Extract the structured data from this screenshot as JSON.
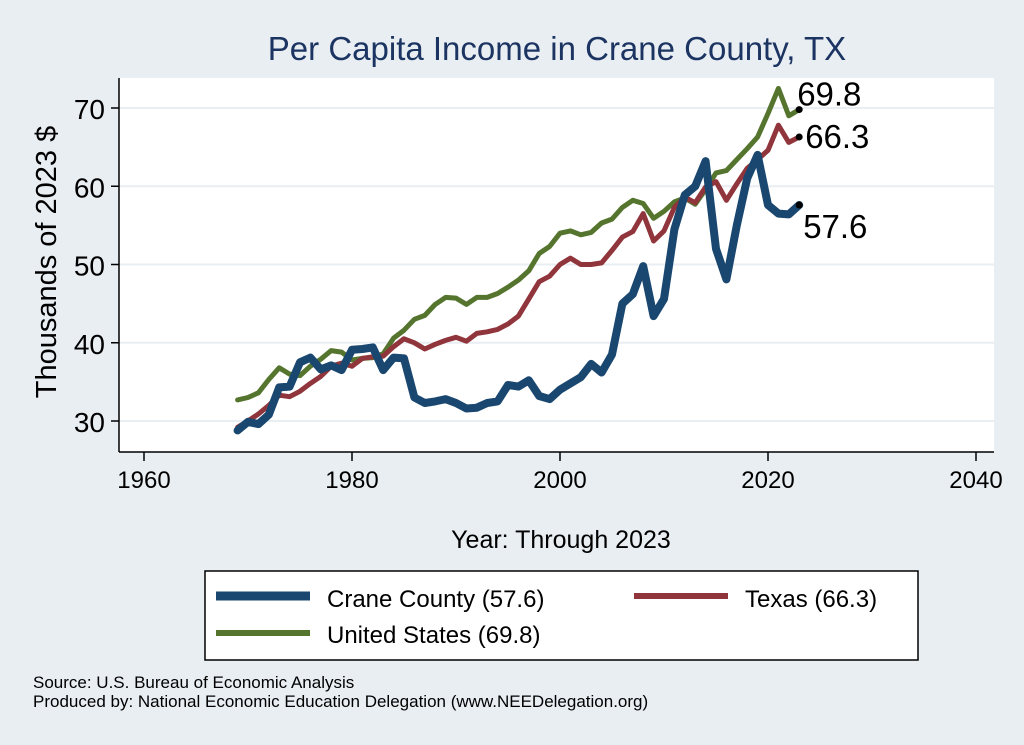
{
  "chart_data": {
    "type": "line",
    "title": "Per Capita Income in Crane County, TX",
    "xlabel": "Year: Through 2023",
    "ylabel": "Thousands of 2023 $",
    "xlim": [
      1960,
      2040
    ],
    "ylim": [
      27,
      75
    ],
    "xticks": [
      1960,
      1980,
      2000,
      2020,
      2040
    ],
    "yticks": [
      30,
      40,
      50,
      60,
      70
    ],
    "grid": "horizontal",
    "legend_position": "bottom",
    "colors": {
      "background": "#e9eef3",
      "plot_background": "#ffffff",
      "title": "#1c3461",
      "grid": "#e9eef3"
    },
    "series": [
      {
        "name": "Crane County",
        "legend_label": "Crane County (57.6)",
        "end_label": "57.6",
        "color": "#1a476f",
        "width": 8,
        "x": [
          1969,
          1970,
          1971,
          1972,
          1973,
          1974,
          1975,
          1976,
          1977,
          1978,
          1979,
          1980,
          1981,
          1982,
          1983,
          1984,
          1985,
          1986,
          1987,
          1988,
          1989,
          1990,
          1991,
          1992,
          1993,
          1994,
          1995,
          1996,
          1997,
          1998,
          1999,
          2000,
          2001,
          2002,
          2003,
          2004,
          2005,
          2006,
          2007,
          2008,
          2009,
          2010,
          2011,
          2012,
          2013,
          2014,
          2015,
          2016,
          2017,
          2018,
          2019,
          2020,
          2021,
          2022,
          2023
        ],
        "values": [
          28.8,
          29.9,
          29.6,
          30.8,
          34.3,
          34.4,
          37.5,
          38.1,
          36.6,
          37.1,
          36.5,
          39.1,
          39.2,
          39.4,
          36.5,
          38.1,
          38.0,
          33.0,
          32.3,
          32.5,
          32.8,
          32.3,
          31.6,
          31.7,
          32.3,
          32.5,
          34.6,
          34.4,
          35.2,
          33.2,
          32.8,
          34.0,
          34.8,
          35.6,
          37.3,
          36.2,
          38.5,
          45.0,
          46.2,
          49.8,
          43.4,
          45.6,
          54.5,
          58.9,
          60.0,
          63.2,
          52.0,
          48.1,
          55.0,
          61.0,
          64.0,
          57.6,
          56.5,
          56.4,
          57.6
        ]
      },
      {
        "name": "Texas",
        "legend_label": "Texas (66.3)",
        "end_label": "66.3",
        "color": "#90353b",
        "width": 5,
        "x": [
          1969,
          1970,
          1971,
          1972,
          1973,
          1974,
          1975,
          1976,
          1977,
          1978,
          1979,
          1980,
          1981,
          1982,
          1983,
          1984,
          1985,
          1986,
          1987,
          1988,
          1989,
          1990,
          1991,
          1992,
          1993,
          1994,
          1995,
          1996,
          1997,
          1998,
          1999,
          2000,
          2001,
          2002,
          2003,
          2004,
          2005,
          2006,
          2007,
          2008,
          2009,
          2010,
          2011,
          2012,
          2013,
          2014,
          2015,
          2016,
          2017,
          2018,
          2019,
          2020,
          2021,
          2022,
          2023
        ],
        "values": [
          29.2,
          30.0,
          30.9,
          32.0,
          33.3,
          33.1,
          33.8,
          34.8,
          35.7,
          37.0,
          37.4,
          37.0,
          38.0,
          38.2,
          38.3,
          39.5,
          40.5,
          40.0,
          39.2,
          39.8,
          40.3,
          40.7,
          40.2,
          41.2,
          41.4,
          41.7,
          42.4,
          43.4,
          45.6,
          47.8,
          48.5,
          50.0,
          50.8,
          50.0,
          50.0,
          50.2,
          51.8,
          53.5,
          54.2,
          56.5,
          53.0,
          54.3,
          57.3,
          58.6,
          57.9,
          59.9,
          60.6,
          58.2,
          60.3,
          62.3,
          63.4,
          64.6,
          67.8,
          65.6,
          66.3
        ]
      },
      {
        "name": "United States",
        "legend_label": "United States (69.8)",
        "end_label": "69.8",
        "color": "#55752f",
        "width": 5,
        "x": [
          1969,
          1970,
          1971,
          1972,
          1973,
          1974,
          1975,
          1976,
          1977,
          1978,
          1979,
          1980,
          1981,
          1982,
          1983,
          1984,
          1985,
          1986,
          1987,
          1988,
          1989,
          1990,
          1991,
          1992,
          1993,
          1994,
          1995,
          1996,
          1997,
          1998,
          1999,
          2000,
          2001,
          2002,
          2003,
          2004,
          2005,
          2006,
          2007,
          2008,
          2009,
          2010,
          2011,
          2012,
          2013,
          2014,
          2015,
          2016,
          2017,
          2018,
          2019,
          2020,
          2021,
          2022,
          2023
        ],
        "values": [
          32.7,
          33.0,
          33.6,
          35.3,
          36.8,
          36.0,
          35.8,
          37.0,
          37.9,
          39.0,
          38.8,
          37.8,
          38.0,
          38.1,
          38.6,
          40.6,
          41.6,
          43.0,
          43.5,
          44.9,
          45.8,
          45.7,
          44.9,
          45.8,
          45.8,
          46.3,
          47.1,
          48.0,
          49.2,
          51.4,
          52.3,
          54.0,
          54.3,
          53.8,
          54.1,
          55.3,
          55.8,
          57.3,
          58.2,
          57.8,
          55.9,
          56.8,
          58.0,
          58.5,
          57.7,
          59.6,
          61.7,
          62.0,
          63.4,
          64.8,
          66.3,
          69.3,
          72.5,
          69.0,
          69.8
        ]
      }
    ]
  },
  "footer": {
    "source": "Source: U.S. Bureau of Economic Analysis",
    "producer": "Produced by: National Economic Education Delegation (www.NEEDelegation.org)"
  }
}
